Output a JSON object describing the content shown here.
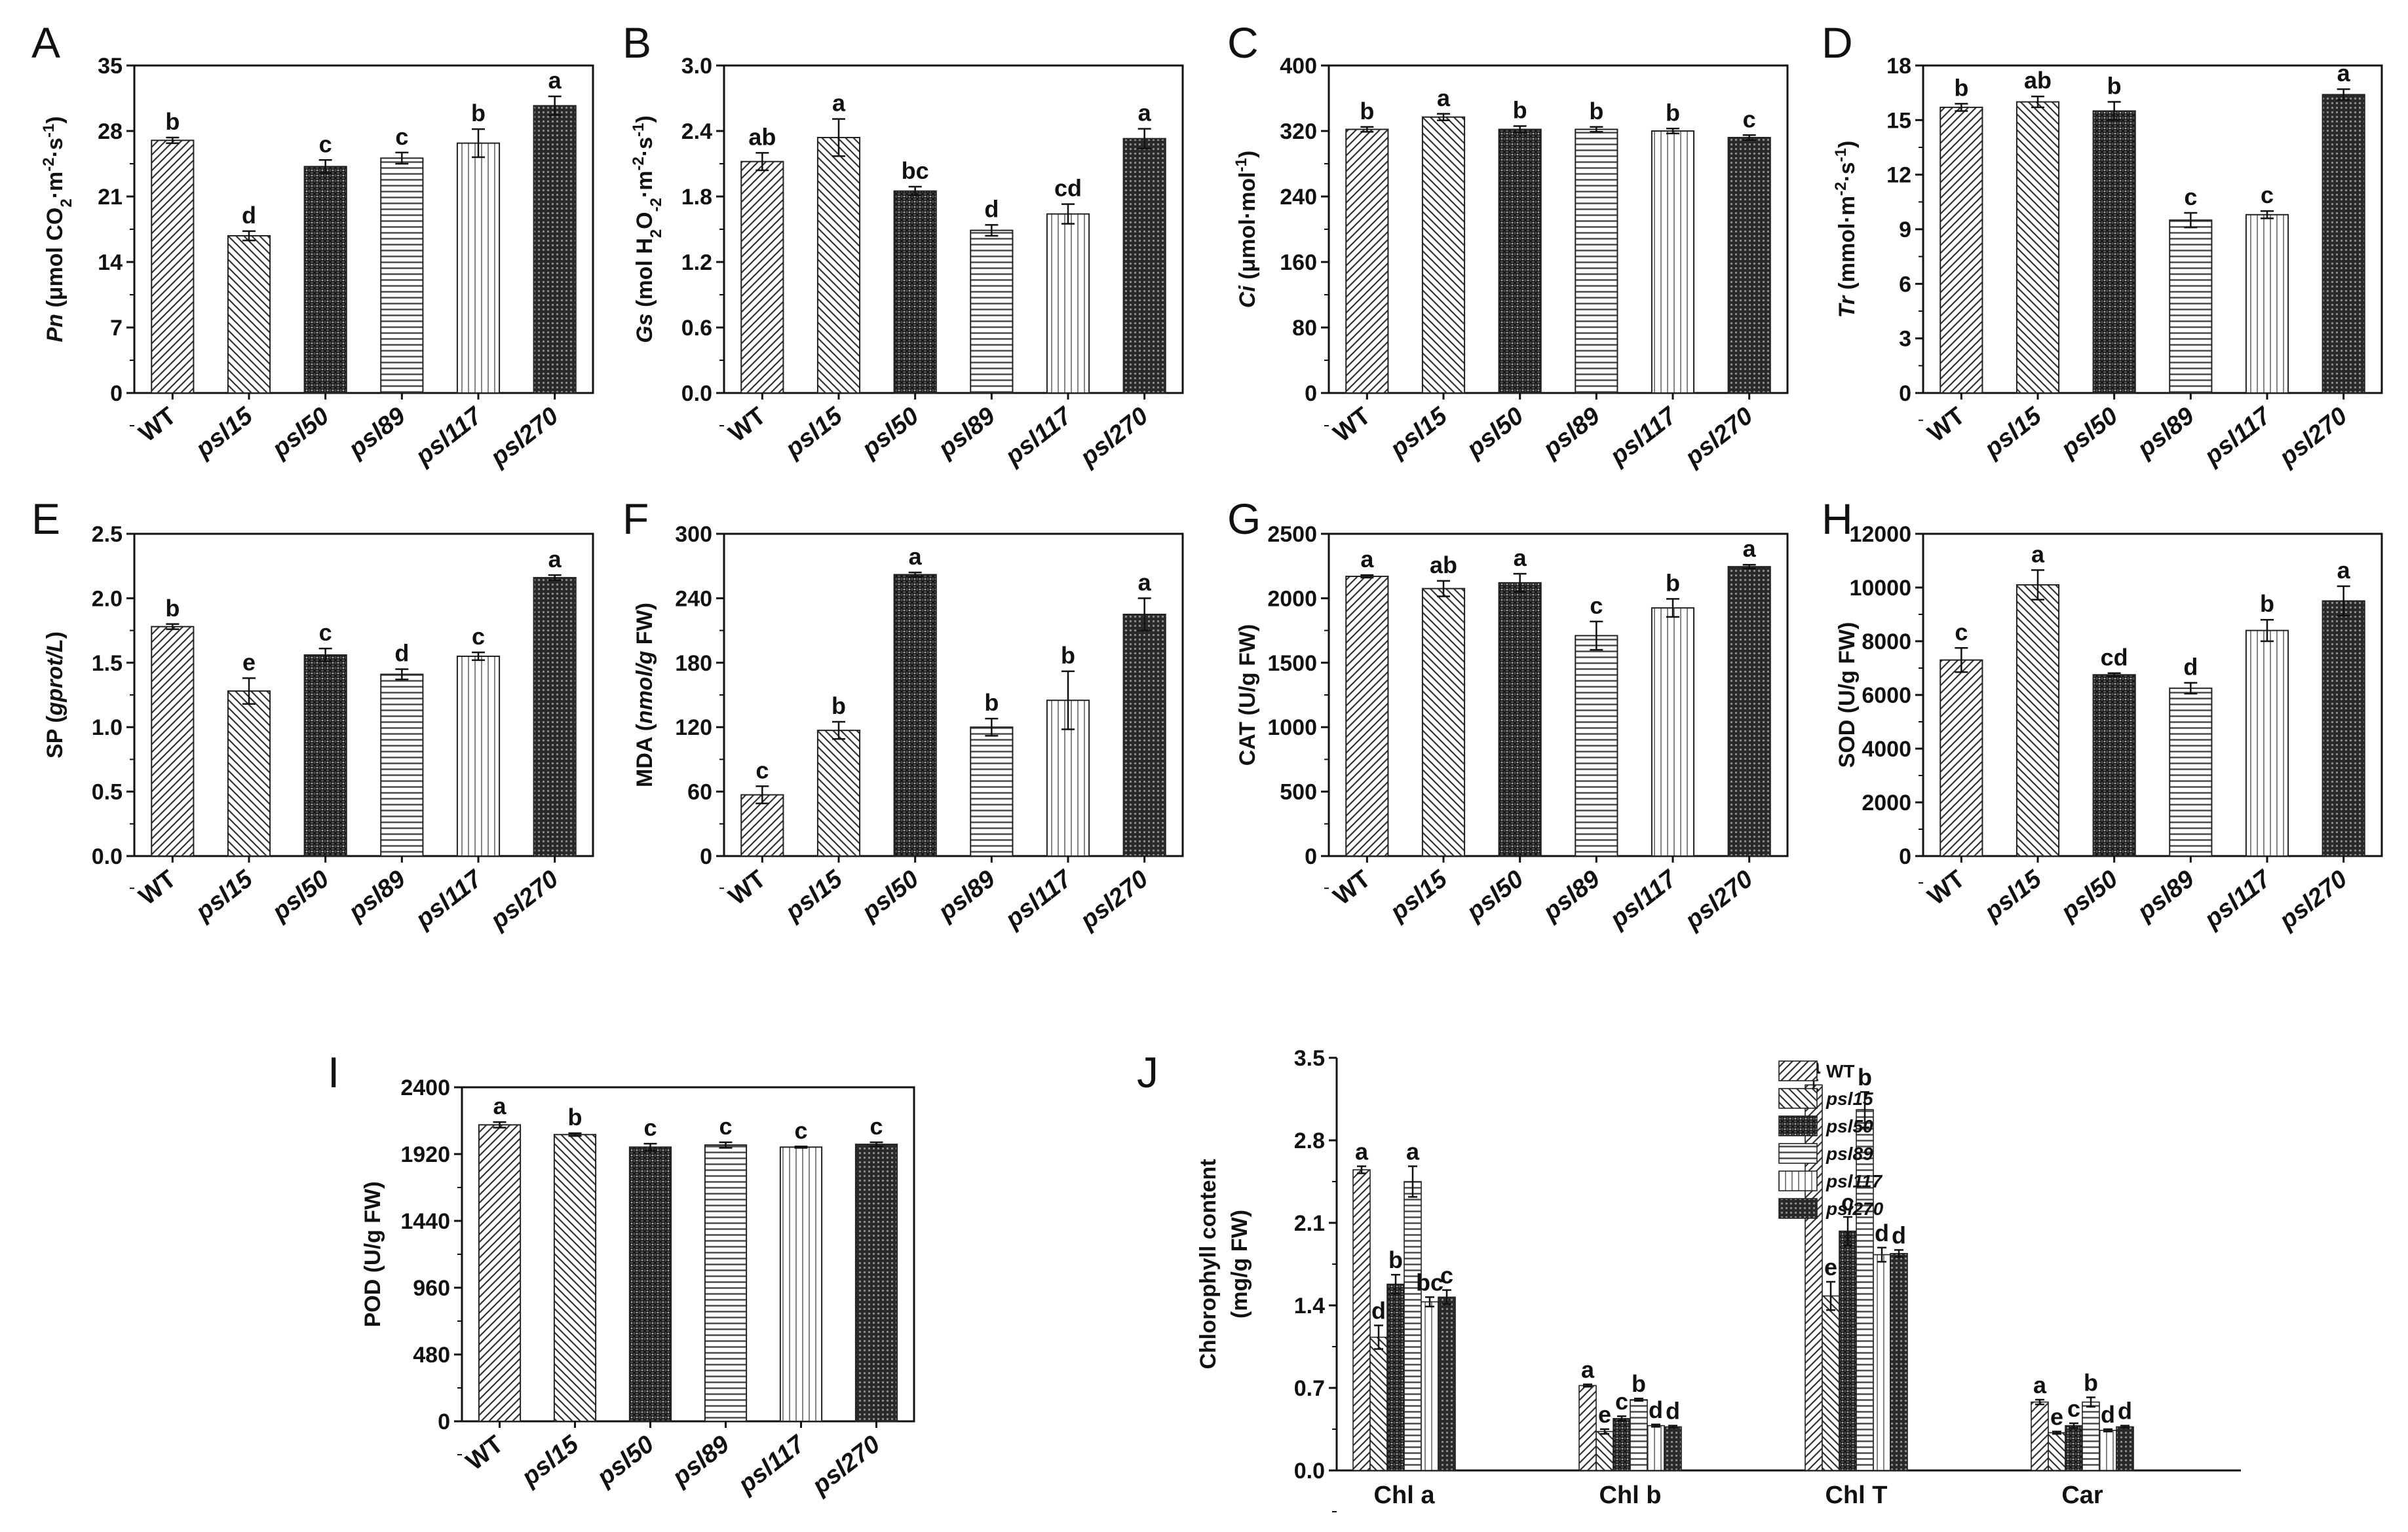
{
  "colors": {
    "axis": "#111111",
    "bar_stroke": "#222222",
    "dark_fill": "#333333"
  },
  "patterns": [
    "diag-right",
    "diag-left",
    "dense-check",
    "horizontal",
    "vertical",
    "dense-grid"
  ],
  "chart_data": [
    {
      "panel": "A",
      "type": "bar",
      "ylabel_parts": [
        {
          "t": "Pn",
          "s": "i"
        },
        {
          "t": " (μmol CO"
        },
        {
          "t": "2",
          "s": "sub"
        },
        {
          "t": "·m"
        },
        {
          "t": "-2",
          "s": "sup"
        },
        {
          "t": "·s"
        },
        {
          "t": "-1",
          "s": "sup"
        },
        {
          "t": ")"
        }
      ],
      "ylim": [
        0,
        35
      ],
      "yticks": [
        "0",
        "7",
        "14",
        "21",
        "28",
        "35"
      ],
      "categories": [
        "WT",
        "psl15",
        "psl50",
        "psl89",
        "psl117",
        "psl270"
      ],
      "values": [
        27.0,
        16.8,
        24.2,
        25.1,
        26.7,
        30.7
      ],
      "errors": [
        0.3,
        0.5,
        0.7,
        0.6,
        1.5,
        1.0
      ],
      "letters": [
        "b",
        "d",
        "c",
        "c",
        "b",
        "a"
      ]
    },
    {
      "panel": "B",
      "type": "bar",
      "ylabel_parts": [
        {
          "t": "Gs",
          "s": "i"
        },
        {
          "t": " (mol H"
        },
        {
          "t": "2",
          "s": "sub"
        },
        {
          "t": "O"
        },
        {
          "t": "-2",
          "s": "sub"
        },
        {
          "t": "·m"
        },
        {
          "t": "-2",
          "s": "sup"
        },
        {
          "t": "·s"
        },
        {
          "t": "-1",
          "s": "sup"
        },
        {
          "t": ")"
        }
      ],
      "ylim": [
        0,
        3.0
      ],
      "yticks": [
        "0.0",
        "0.6",
        "1.2",
        "1.8",
        "2.4",
        "3.0"
      ],
      "categories": [
        "WT",
        "psl15",
        "psl50",
        "psl89",
        "psl117",
        "psl270"
      ],
      "values": [
        2.12,
        2.34,
        1.85,
        1.49,
        1.64,
        2.33
      ],
      "errors": [
        0.08,
        0.17,
        0.04,
        0.05,
        0.09,
        0.09
      ],
      "letters": [
        "ab",
        "a",
        "bc",
        "d",
        "cd",
        "a"
      ]
    },
    {
      "panel": "C",
      "type": "bar",
      "ylabel_parts": [
        {
          "t": "Ci",
          "s": "i"
        },
        {
          "t": " (μmol·mol"
        },
        {
          "t": "-1",
          "s": "sup"
        },
        {
          "t": ")"
        }
      ],
      "ylim": [
        0,
        400
      ],
      "yticks": [
        "0",
        "80",
        "160",
        "240",
        "320",
        "400"
      ],
      "categories": [
        "WT",
        "psl15",
        "psl50",
        "psl89",
        "psl117",
        "psl270"
      ],
      "values": [
        322,
        337,
        322,
        322,
        320,
        312
      ],
      "errors": [
        3,
        4,
        4,
        3,
        3,
        3
      ],
      "letters": [
        "b",
        "a",
        "b",
        "b",
        "b",
        "c"
      ]
    },
    {
      "panel": "D",
      "type": "bar",
      "ylabel_parts": [
        {
          "t": "Tr",
          "s": "i"
        },
        {
          "t": " (mmol·m"
        },
        {
          "t": "-2",
          "s": "sup"
        },
        {
          "t": "·s"
        },
        {
          "t": "-1",
          "s": "sup"
        },
        {
          "t": ")"
        }
      ],
      "ylim": [
        0,
        18
      ],
      "yticks": [
        "0",
        "3",
        "6",
        "9",
        "12",
        "15",
        "18"
      ],
      "categories": [
        "WT",
        "psl15",
        "psl50",
        "psl89",
        "psl117",
        "psl270"
      ],
      "values": [
        15.7,
        16.0,
        15.5,
        9.5,
        9.8,
        16.4
      ],
      "errors": [
        0.2,
        0.3,
        0.5,
        0.4,
        0.2,
        0.3
      ],
      "letters": [
        "b",
        "ab",
        "b",
        "c",
        "c",
        "a"
      ]
    },
    {
      "panel": "E",
      "type": "bar",
      "ylabel_parts": [
        {
          "t": "SP ("
        },
        {
          "t": "gprot/L",
          "s": "i"
        },
        {
          "t": ")"
        }
      ],
      "ylim": [
        0,
        2.5
      ],
      "yticks": [
        "0.0",
        "0.5",
        "1.0",
        "1.5",
        "2.0",
        "2.5"
      ],
      "categories": [
        "WT",
        "psl15",
        "psl50",
        "psl89",
        "psl117",
        "psl270"
      ],
      "values": [
        1.78,
        1.28,
        1.56,
        1.41,
        1.55,
        2.16
      ],
      "errors": [
        0.02,
        0.1,
        0.05,
        0.04,
        0.03,
        0.02
      ],
      "letters": [
        "b",
        "e",
        "c",
        "d",
        "c",
        "a"
      ]
    },
    {
      "panel": "F",
      "type": "bar",
      "ylabel_parts": [
        {
          "t": "MDA ("
        },
        {
          "t": "nmol/g",
          "s": "i"
        },
        {
          "t": " FW)"
        }
      ],
      "ylim": [
        0,
        300
      ],
      "yticks": [
        "0",
        "60",
        "120",
        "180",
        "240",
        "300"
      ],
      "categories": [
        "WT",
        "psl15",
        "psl50",
        "psl89",
        "psl117",
        "psl270"
      ],
      "values": [
        57,
        117,
        262,
        120,
        145,
        225
      ],
      "errors": [
        8,
        8,
        2,
        8,
        27,
        15
      ],
      "letters": [
        "c",
        "b",
        "a",
        "b",
        "b",
        "a"
      ]
    },
    {
      "panel": "G",
      "type": "bar",
      "ylabel_parts": [
        {
          "t": "CAT (U/g FW)"
        }
      ],
      "ylim": [
        0,
        2500
      ],
      "yticks": [
        "0",
        "500",
        "1000",
        "1500",
        "2000",
        "2500"
      ],
      "categories": [
        "WT",
        "psl15",
        "psl50",
        "psl89",
        "psl117",
        "psl270"
      ],
      "values": [
        2170,
        2075,
        2120,
        1710,
        1925,
        2245
      ],
      "errors": [
        10,
        60,
        70,
        110,
        70,
        15
      ],
      "letters": [
        "a",
        "ab",
        "a",
        "c",
        "b",
        "a"
      ]
    },
    {
      "panel": "H",
      "type": "bar",
      "ylabel_parts": [
        {
          "t": "SOD (U/g FW)"
        }
      ],
      "ylim": [
        0,
        12000
      ],
      "yticks": [
        "0",
        "2000",
        "4000",
        "6000",
        "8000",
        "10000",
        "12000"
      ],
      "categories": [
        "WT",
        "psl15",
        "psl50",
        "psl89",
        "psl117",
        "psl270"
      ],
      "values": [
        7300,
        10100,
        6750,
        6250,
        8400,
        9500
      ],
      "errors": [
        450,
        550,
        60,
        200,
        400,
        550
      ],
      "letters": [
        "c",
        "a",
        "cd",
        "d",
        "b",
        "a"
      ]
    },
    {
      "panel": "I",
      "type": "bar",
      "ylabel_parts": [
        {
          "t": "POD (U/g FW)"
        }
      ],
      "ylim": [
        0,
        2400
      ],
      "yticks": [
        "0",
        "480",
        "960",
        "1440",
        "1920",
        "2400"
      ],
      "categories": [
        "WT",
        "psl15",
        "psl50",
        "psl89",
        "psl117",
        "psl270"
      ],
      "values": [
        2130,
        2060,
        1970,
        1985,
        1970,
        1990
      ],
      "errors": [
        20,
        10,
        25,
        20,
        5,
        15
      ],
      "letters": [
        "a",
        "b",
        "c",
        "c",
        "c",
        "c"
      ]
    },
    {
      "panel": "J",
      "type": "bar",
      "ylabel_lines": [
        "Chlorophyll content",
        "(mg/g FW)"
      ],
      "ylim": [
        0,
        3.5
      ],
      "yticks": [
        "0.0",
        "0.7",
        "1.4",
        "2.1",
        "2.8",
        "3.5"
      ],
      "categories": [
        "Chl a",
        "Chl b",
        "Chl T",
        "Car"
      ],
      "legend_position": "top-right",
      "series": [
        {
          "name": "WT",
          "values": [
            2.55,
            0.72,
            3.27,
            0.58
          ],
          "errors": [
            0.03,
            0.01,
            0.04,
            0.02
          ],
          "letters": [
            "a",
            "a",
            "a",
            "a"
          ]
        },
        {
          "name": "psl15",
          "values": [
            1.13,
            0.33,
            1.48,
            0.32
          ],
          "errors": [
            0.1,
            0.02,
            0.12,
            0.01
          ],
          "letters": [
            "d",
            "e",
            "e",
            "e"
          ]
        },
        {
          "name": "psl50",
          "values": [
            1.58,
            0.44,
            2.03,
            0.38
          ],
          "errors": [
            0.08,
            0.02,
            0.12,
            0.02
          ],
          "letters": [
            "b",
            "c",
            "c",
            "c"
          ]
        },
        {
          "name": "psl89",
          "values": [
            2.45,
            0.6,
            3.06,
            0.58
          ],
          "errors": [
            0.13,
            0.01,
            0.15,
            0.04
          ],
          "letters": [
            "a",
            "b",
            "b",
            "b"
          ]
        },
        {
          "name": "psl117",
          "values": [
            1.43,
            0.38,
            1.83,
            0.34
          ],
          "errors": [
            0.04,
            0.01,
            0.06,
            0.01
          ],
          "letters": [
            "bc",
            "d",
            "d",
            "d"
          ]
        },
        {
          "name": "psl270",
          "values": [
            1.47,
            0.37,
            1.84,
            0.37
          ],
          "errors": [
            0.06,
            0.01,
            0.03,
            0.01
          ],
          "letters": [
            "c",
            "d",
            "d",
            "d"
          ]
        }
      ]
    }
  ]
}
